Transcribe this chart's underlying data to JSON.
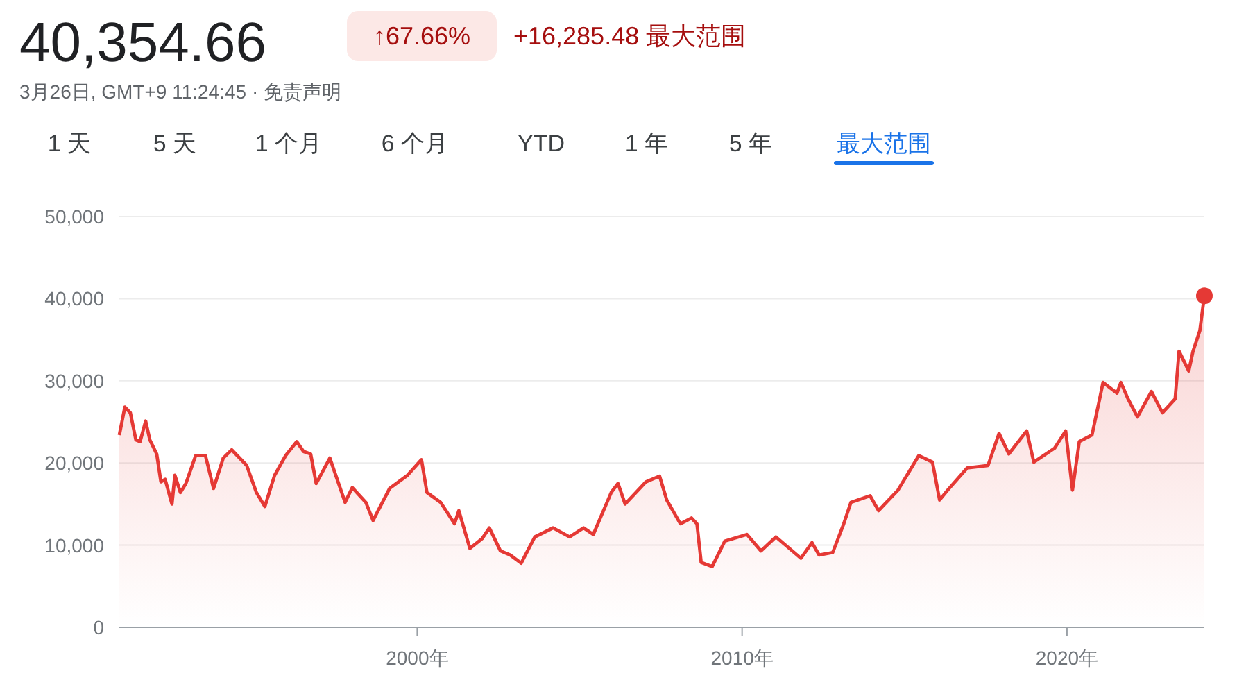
{
  "chart_data": {
    "type": "area",
    "title": "40,354.66",
    "subtitle": "3月26日, GMT+9 11:24:45 · 免责声明",
    "annotations": [
      "↑67.66%",
      "+16,285.48 最大范围",
      "1 天",
      "5 天",
      "1 个月",
      "6 个月",
      "YTD",
      "1 年",
      "5 年",
      "最大范围"
    ],
    "grid": "y",
    "xlim": [
      1990.83,
      2024.23
    ],
    "ylim": [
      0,
      50000
    ],
    "xticks": [
      {
        "value": 2000,
        "label": "2000年"
      },
      {
        "value": 2010,
        "label": "2010年"
      },
      {
        "value": 2020,
        "label": "2020年"
      }
    ],
    "yticks": [
      {
        "value": 0,
        "label": "0"
      },
      {
        "value": 10000,
        "label": "10,000"
      },
      {
        "value": 20000,
        "label": "20,000"
      },
      {
        "value": 30000,
        "label": "30,000"
      },
      {
        "value": 40000,
        "label": "40,000"
      },
      {
        "value": 50000,
        "label": "50,000"
      }
    ],
    "series": [
      {
        "color": "#e53935",
        "x": [
          1990.83,
          1991.0,
          1991.17,
          1991.34,
          1991.47,
          1991.64,
          1991.77,
          1991.98,
          1992.11,
          1992.24,
          1992.45,
          1992.54,
          1992.71,
          1992.88,
          1993.18,
          1993.48,
          1993.73,
          1994.03,
          1994.29,
          1994.75,
          1995.05,
          1995.31,
          1995.61,
          1995.95,
          1996.29,
          1996.5,
          1996.72,
          1996.89,
          1997.31,
          1997.78,
          1998.0,
          1998.42,
          1998.64,
          1999.15,
          1999.7,
          2000.13,
          2000.3,
          2000.72,
          2001.15,
          2001.28,
          2001.62,
          2002.0,
          2002.22,
          2002.56,
          2002.86,
          2003.2,
          2003.62,
          2004.18,
          2004.69,
          2005.12,
          2005.42,
          2005.97,
          2006.18,
          2006.4,
          2007.04,
          2007.46,
          2007.68,
          2008.1,
          2008.44,
          2008.61,
          2008.74,
          2009.08,
          2009.47,
          2010.15,
          2010.58,
          2011.04,
          2011.81,
          2012.15,
          2012.37,
          2012.79,
          2013.13,
          2013.35,
          2013.94,
          2014.2,
          2014.8,
          2015.44,
          2015.86,
          2016.08,
          2016.33,
          2016.93,
          2017.57,
          2017.91,
          2018.21,
          2018.76,
          2018.98,
          2019.62,
          2019.96,
          2020.17,
          2020.38,
          2020.77,
          2020.98,
          2021.11,
          2021.54,
          2021.66,
          2021.88,
          2022.17,
          2022.6,
          2022.94,
          2023.33,
          2023.45,
          2023.75,
          2023.88,
          2024.09,
          2024.23
        ],
        "values": [
          23400,
          26800,
          26100,
          22800,
          22600,
          25100,
          22800,
          21100,
          17700,
          18000,
          15000,
          18500,
          16400,
          17500,
          20900,
          20900,
          16900,
          20600,
          21600,
          19700,
          16400,
          14700,
          18500,
          20900,
          22600,
          21400,
          21100,
          17500,
          20600,
          15200,
          17000,
          15200,
          13000,
          16900,
          18500,
          20400,
          16400,
          15200,
          12600,
          14200,
          9600,
          10800,
          12100,
          9300,
          8800,
          7800,
          11000,
          12100,
          11000,
          12100,
          11300,
          16400,
          17500,
          15000,
          17700,
          18400,
          15500,
          12600,
          13300,
          12600,
          7900,
          7400,
          10500,
          11300,
          9300,
          11000,
          8400,
          10300,
          8800,
          9100,
          12600,
          15200,
          16000,
          14200,
          16700,
          20900,
          20100,
          15500,
          16700,
          19400,
          19700,
          23600,
          21100,
          23900,
          20100,
          21800,
          23900,
          16700,
          22600,
          23400,
          27300,
          29800,
          28500,
          29800,
          27800,
          25600,
          28700,
          26100,
          27800,
          33600,
          31200,
          33600,
          36100,
          40354.66
        ]
      }
    ]
  }
}
